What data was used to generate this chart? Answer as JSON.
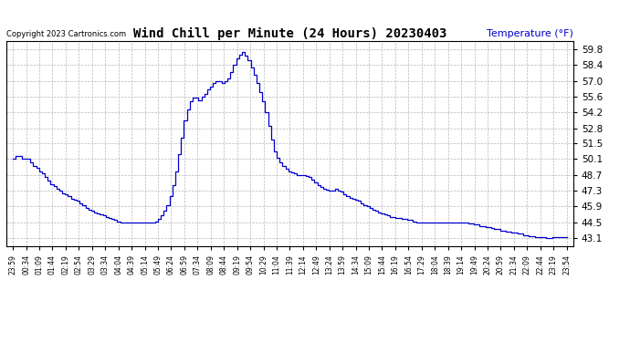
{
  "title": "Wind Chill per Minute (24 Hours) 20230403",
  "ylabel": "Temperature (°F)",
  "copyright": "Copyright 2023 Cartronics.com",
  "line_color": "#0000cc",
  "bg_color": "#ffffff",
  "grid_color": "#b0b0b0",
  "ylabel_color": "#0000cc",
  "yticks": [
    43.1,
    44.5,
    45.9,
    47.3,
    48.7,
    50.1,
    51.5,
    52.8,
    54.2,
    55.6,
    57.0,
    58.4,
    59.8
  ],
  "ymin": 42.4,
  "ymax": 60.5,
  "xtick_labels": [
    "23:59",
    "00:34",
    "01:09",
    "01:44",
    "02:19",
    "02:54",
    "03:29",
    "03:34",
    "04:04",
    "04:39",
    "05:14",
    "05:49",
    "06:24",
    "06:59",
    "07:34",
    "08:09",
    "08:44",
    "09:19",
    "09:54",
    "10:29",
    "11:04",
    "11:39",
    "12:14",
    "12:49",
    "13:24",
    "13:59",
    "14:34",
    "15:09",
    "15:44",
    "16:19",
    "16:54",
    "17:29",
    "18:04",
    "18:39",
    "19:14",
    "19:49",
    "20:24",
    "20:59",
    "21:34",
    "22:09",
    "22:44",
    "23:19",
    "23:54"
  ],
  "curve_y_values": [
    50.1,
    50.4,
    50.4,
    50.1,
    50.1,
    50.1,
    49.8,
    49.5,
    49.3,
    49.0,
    48.8,
    48.5,
    48.2,
    47.9,
    47.7,
    47.5,
    47.3,
    47.1,
    47.0,
    46.8,
    46.6,
    46.5,
    46.4,
    46.2,
    46.0,
    45.8,
    45.6,
    45.5,
    45.4,
    45.3,
    45.2,
    45.1,
    45.0,
    44.9,
    44.8,
    44.7,
    44.6,
    44.5,
    44.5,
    44.5,
    44.5,
    44.5,
    44.5,
    44.5,
    44.5,
    44.5,
    44.5,
    44.5,
    44.5,
    44.6,
    44.8,
    45.1,
    45.5,
    46.0,
    46.8,
    47.8,
    49.0,
    50.5,
    52.0,
    53.5,
    54.5,
    55.2,
    55.5,
    55.5,
    55.3,
    55.6,
    55.8,
    56.2,
    56.5,
    56.8,
    57.0,
    57.0,
    56.8,
    57.0,
    57.2,
    57.8,
    58.4,
    59.0,
    59.3,
    59.5,
    59.2,
    58.8,
    58.2,
    57.5,
    56.8,
    56.0,
    55.2,
    54.2,
    53.0,
    51.8,
    50.8,
    50.2,
    49.8,
    49.5,
    49.2,
    49.0,
    48.9,
    48.8,
    48.7,
    48.7,
    48.7,
    48.6,
    48.5,
    48.3,
    48.0,
    47.8,
    47.6,
    47.5,
    47.4,
    47.3,
    47.3,
    47.5,
    47.3,
    47.2,
    47.0,
    46.8,
    46.7,
    46.6,
    46.5,
    46.4,
    46.2,
    46.0,
    45.9,
    45.8,
    45.6,
    45.5,
    45.4,
    45.3,
    45.2,
    45.1,
    45.0,
    45.0,
    44.9,
    44.9,
    44.8,
    44.8,
    44.7,
    44.7,
    44.6,
    44.5,
    44.5,
    44.5,
    44.5,
    44.5,
    44.5,
    44.5,
    44.5,
    44.5,
    44.5,
    44.5,
    44.5,
    44.5,
    44.5,
    44.5,
    44.5,
    44.5,
    44.5,
    44.4,
    44.4,
    44.3,
    44.3,
    44.2,
    44.2,
    44.1,
    44.1,
    44.0,
    43.9,
    43.9,
    43.8,
    43.8,
    43.7,
    43.7,
    43.6,
    43.6,
    43.5,
    43.5,
    43.4,
    43.4,
    43.3,
    43.3,
    43.2,
    43.2,
    43.2,
    43.2,
    43.1,
    43.1,
    43.2,
    43.2,
    43.2,
    43.2,
    43.2,
    43.2
  ]
}
